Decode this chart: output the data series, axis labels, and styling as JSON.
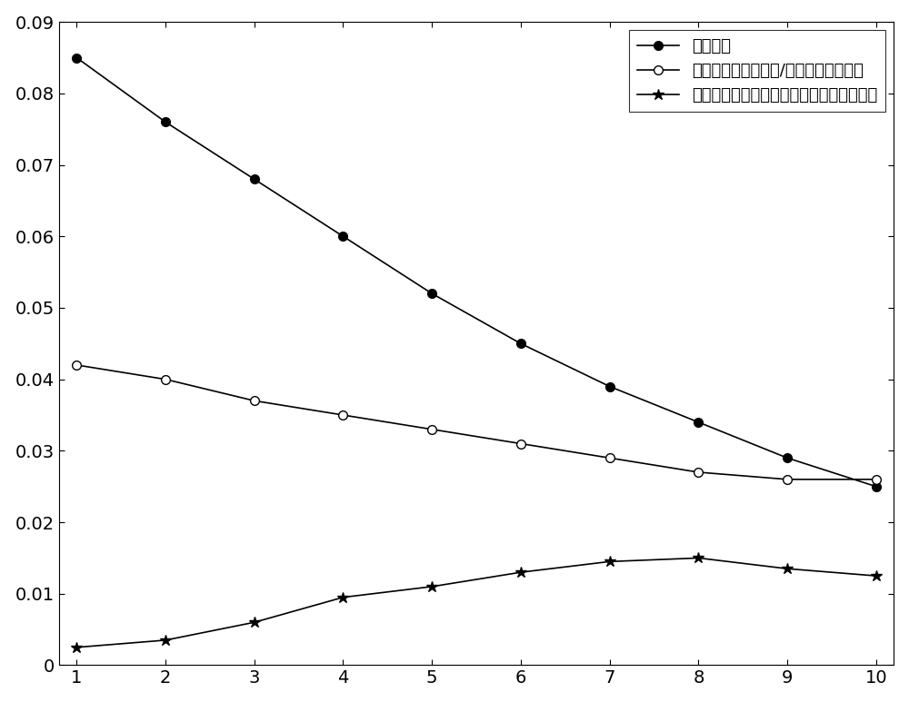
{
  "x": [
    1,
    2,
    3,
    4,
    5,
    6,
    7,
    8,
    9,
    10
  ],
  "series1_values": [
    0.085,
    0.076,
    0.068,
    0.06,
    0.052,
    0.045,
    0.039,
    0.034,
    0.029,
    0.025
  ],
  "series2_values": [
    0.042,
    0.04,
    0.037,
    0.035,
    0.033,
    0.031,
    0.029,
    0.027,
    0.026,
    0.026
  ],
  "series3_values": [
    0.0025,
    0.0035,
    0.006,
    0.0095,
    0.011,
    0.013,
    0.0145,
    0.015,
    0.0135,
    0.0125
  ],
  "series1_label": "惯导误差",
  "series2_label": "基于迭代计算的惯性/地磁匹配方法误差",
  "series3_label": "基于抗差估计的惯性地磁匹配定位方法误差",
  "xlim": [
    0.8,
    10.2
  ],
  "ylim": [
    0,
    0.09
  ],
  "yticks": [
    0,
    0.01,
    0.02,
    0.03,
    0.04,
    0.05,
    0.06,
    0.07,
    0.08,
    0.09
  ],
  "xticks": [
    1,
    2,
    3,
    4,
    5,
    6,
    7,
    8,
    9,
    10
  ],
  "linewidth": 1.2,
  "markersize_circle": 7,
  "markersize_star": 9,
  "tick_labelsize": 14,
  "legend_fontsize": 13
}
